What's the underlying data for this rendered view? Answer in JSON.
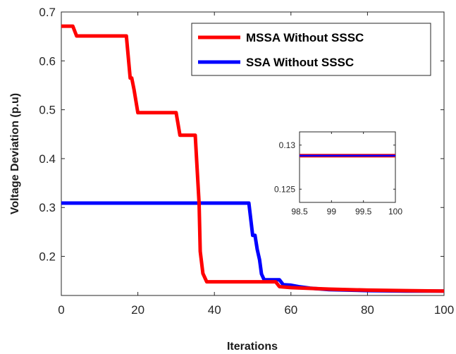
{
  "chart_data": {
    "type": "line",
    "xlabel": "Iterations",
    "ylabel": "Voltage Deviation (p.u)",
    "xlim": [
      0,
      100
    ],
    "ylim": [
      0.12,
      0.7
    ],
    "xticks": [
      "0",
      "20",
      "40",
      "60",
      "80",
      "100"
    ],
    "yticks": [
      "0.2",
      "0.3",
      "0.4",
      "0.5",
      "0.6",
      "0.7"
    ],
    "grid": false,
    "legend_position": "top-right",
    "series": [
      {
        "name": "MSSA Without SSSC",
        "color": "#ff0000",
        "x": [
          0,
          3,
          4,
          17,
          18,
          18.4,
          19,
          20,
          30,
          31,
          35,
          36,
          36.3,
          37,
          38,
          56,
          57,
          60,
          70,
          80,
          90,
          100
        ],
        "y": [
          0.671,
          0.671,
          0.651,
          0.651,
          0.565,
          0.565,
          0.541,
          0.494,
          0.494,
          0.448,
          0.448,
          0.308,
          0.21,
          0.165,
          0.148,
          0.148,
          0.138,
          0.136,
          0.133,
          0.131,
          0.13,
          0.129
        ]
      },
      {
        "name": "SSA Without SSSC",
        "color": "#0000ff",
        "x": [
          0,
          49,
          50,
          50.6,
          51.2,
          51.8,
          52.3,
          53,
          55,
          57,
          58,
          60,
          62,
          65,
          70,
          80,
          90,
          100
        ],
        "y": [
          0.309,
          0.309,
          0.243,
          0.243,
          0.214,
          0.193,
          0.164,
          0.152,
          0.152,
          0.152,
          0.142,
          0.141,
          0.138,
          0.135,
          0.132,
          0.13,
          0.129,
          0.129
        ]
      }
    ],
    "inset": {
      "xlim": [
        98.5,
        100
      ],
      "ylim": [
        0.1235,
        0.1315
      ],
      "xticks": [
        "98.5",
        "99",
        "99.5",
        "100"
      ],
      "yticks": [
        "0.125",
        "0.13"
      ],
      "series": [
        {
          "name": "MSSA Without SSSC",
          "color": "#ff0000",
          "x": [
            98.5,
            100
          ],
          "y": [
            0.1288,
            0.1288
          ]
        },
        {
          "name": "SSA Without SSSC",
          "color": "#0000ff",
          "x": [
            98.5,
            100
          ],
          "y": [
            0.1288,
            0.1288
          ]
        }
      ]
    }
  }
}
